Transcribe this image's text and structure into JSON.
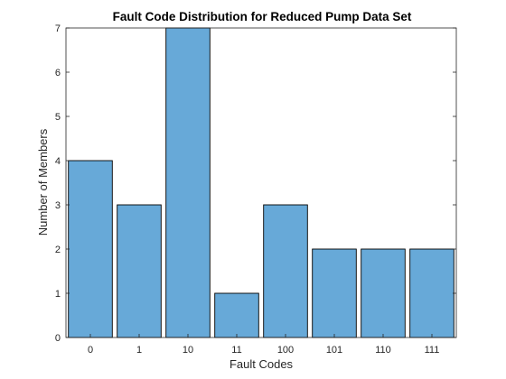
{
  "chart_data": {
    "type": "bar",
    "title": "Fault Code Distribution for Reduced Pump Data Set",
    "xlabel": "Fault Codes",
    "ylabel": "Number of Members",
    "categories": [
      "0",
      "1",
      "10",
      "11",
      "100",
      "101",
      "110",
      "111"
    ],
    "values": [
      4,
      3,
      7,
      1,
      3,
      2,
      2,
      2
    ],
    "ylim": [
      0,
      7
    ],
    "yticks": [
      0,
      1,
      2,
      3,
      4,
      5,
      6,
      7
    ],
    "grid": false,
    "bar_color": "#67a9d8",
    "bar_edge_color": "#000000"
  }
}
